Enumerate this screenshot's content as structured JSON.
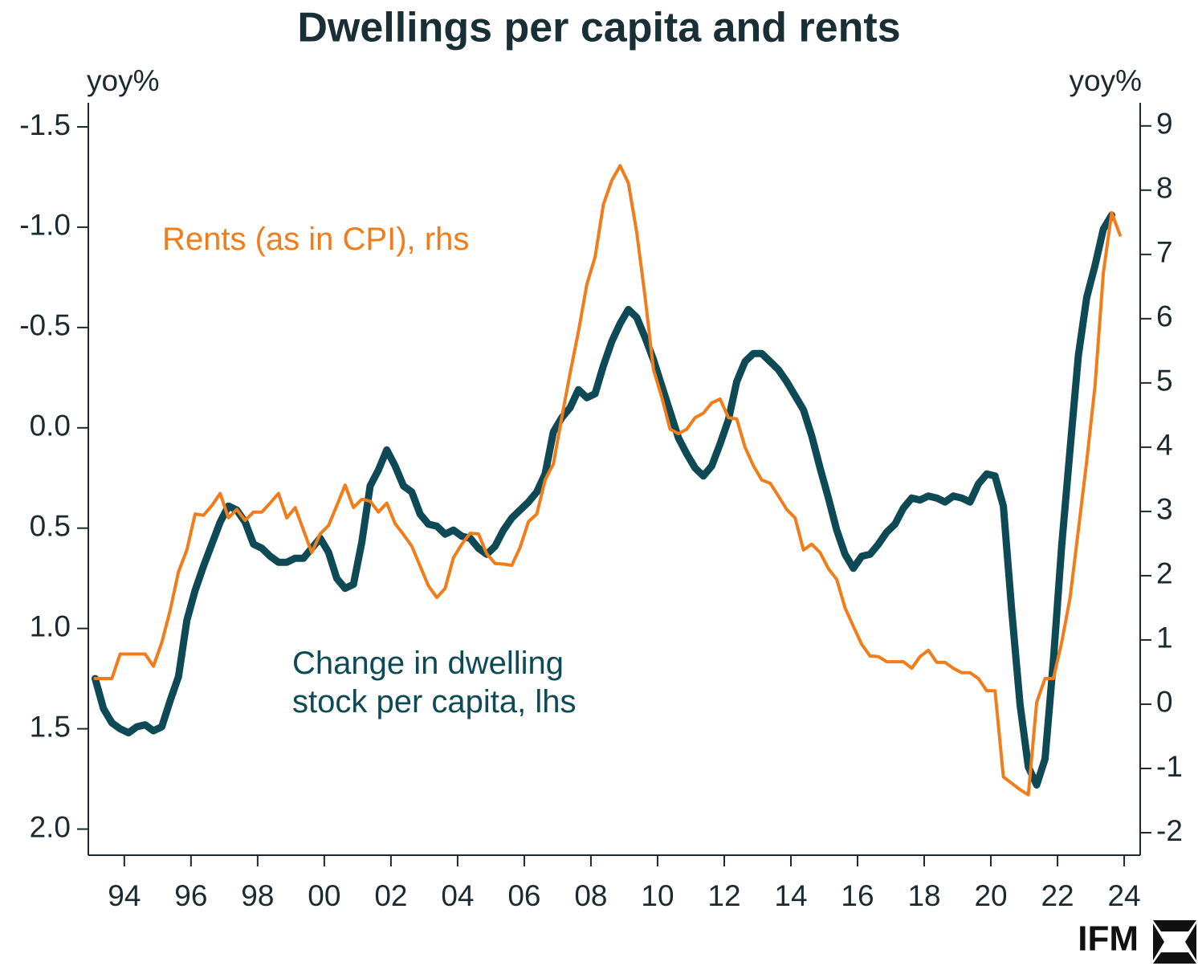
{
  "chart_data": {
    "type": "line",
    "title": "Dwellings per capita and rents",
    "y_unit": "yoy%",
    "y2_unit": "yoy%",
    "logo": "IFM",
    "x": [
      1993.125,
      1993.375,
      1993.625,
      1993.875,
      1994.125,
      1994.375,
      1994.625,
      1994.875,
      1995.125,
      1995.375,
      1995.625,
      1995.875,
      1996.125,
      1996.375,
      1996.625,
      1996.875,
      1997.125,
      1997.375,
      1997.625,
      1997.875,
      1998.125,
      1998.375,
      1998.625,
      1998.875,
      1999.125,
      1999.375,
      1999.625,
      1999.875,
      2000.125,
      2000.375,
      2000.625,
      2000.875,
      2001.125,
      2001.375,
      2001.625,
      2001.875,
      2002.125,
      2002.375,
      2002.625,
      2002.875,
      2003.125,
      2003.375,
      2003.625,
      2003.875,
      2004.125,
      2004.375,
      2004.625,
      2004.875,
      2005.125,
      2005.375,
      2005.625,
      2005.875,
      2006.125,
      2006.375,
      2006.625,
      2006.875,
      2007.125,
      2007.375,
      2007.625,
      2007.875,
      2008.125,
      2008.375,
      2008.625,
      2008.875,
      2009.125,
      2009.375,
      2009.625,
      2009.875,
      2010.125,
      2010.375,
      2010.625,
      2010.875,
      2011.125,
      2011.375,
      2011.625,
      2011.875,
      2012.125,
      2012.375,
      2012.625,
      2012.875,
      2013.125,
      2013.375,
      2013.625,
      2013.875,
      2014.125,
      2014.375,
      2014.625,
      2014.875,
      2015.125,
      2015.375,
      2015.625,
      2015.875,
      2016.125,
      2016.375,
      2016.625,
      2016.875,
      2017.125,
      2017.375,
      2017.625,
      2017.875,
      2018.125,
      2018.375,
      2018.625,
      2018.875,
      2019.125,
      2019.375,
      2019.625,
      2019.875,
      2020.125,
      2020.375,
      2020.625,
      2020.875,
      2021.125,
      2021.375,
      2021.625,
      2021.875,
      2022.125,
      2022.375,
      2022.625,
      2022.875,
      2023.125,
      2023.375,
      2023.625,
      2023.875
    ],
    "series": [
      {
        "name": "Change in dwelling stock per capita, lhs",
        "color": "#0d4a55",
        "axis": "y",
        "values": [
          1.25,
          1.4,
          1.47,
          1.5,
          1.52,
          1.49,
          1.48,
          1.51,
          1.49,
          1.36,
          1.24,
          0.96,
          0.81,
          0.69,
          0.58,
          0.47,
          0.39,
          0.41,
          0.47,
          0.58,
          0.6,
          0.64,
          0.67,
          0.67,
          0.65,
          0.65,
          0.6,
          0.55,
          0.62,
          0.75,
          0.8,
          0.78,
          0.57,
          0.29,
          0.21,
          0.11,
          0.19,
          0.29,
          0.32,
          0.43,
          0.48,
          0.49,
          0.53,
          0.51,
          0.54,
          0.55,
          0.6,
          0.63,
          0.59,
          0.51,
          0.45,
          0.41,
          0.37,
          0.32,
          0.23,
          0.02,
          -0.05,
          -0.1,
          -0.19,
          -0.15,
          -0.17,
          -0.31,
          -0.43,
          -0.52,
          -0.59,
          -0.55,
          -0.45,
          -0.34,
          -0.21,
          -0.08,
          0.05,
          0.13,
          0.2,
          0.24,
          0.19,
          0.08,
          -0.04,
          -0.23,
          -0.33,
          -0.37,
          -0.37,
          -0.33,
          -0.29,
          -0.23,
          -0.16,
          -0.09,
          0.04,
          0.2,
          0.35,
          0.51,
          0.63,
          0.7,
          0.64,
          0.63,
          0.58,
          0.52,
          0.48,
          0.4,
          0.35,
          0.36,
          0.34,
          0.35,
          0.37,
          0.34,
          0.35,
          0.37,
          0.28,
          0.23,
          0.24,
          0.39,
          0.91,
          1.38,
          1.69,
          1.78,
          1.65,
          1.16,
          0.59,
          0.11,
          -0.36,
          -0.65,
          -0.81,
          -0.99,
          -1.06,
          null
        ]
      },
      {
        "name": "Rents (as in CPI), rhs",
        "color": "#f07d19",
        "axis": "y2",
        "values": [
          0.4,
          0.4,
          0.4,
          0.78,
          0.78,
          0.78,
          0.78,
          0.59,
          0.96,
          1.46,
          2.06,
          2.4,
          2.96,
          2.94,
          3.09,
          3.28,
          2.9,
          3.03,
          2.86,
          2.99,
          2.99,
          3.13,
          3.28,
          2.9,
          3.06,
          2.71,
          2.36,
          2.65,
          2.78,
          3.09,
          3.41,
          3.06,
          3.19,
          3.16,
          2.99,
          3.13,
          2.81,
          2.64,
          2.46,
          2.15,
          1.84,
          1.66,
          1.8,
          2.28,
          2.49,
          2.66,
          2.65,
          2.34,
          2.19,
          2.18,
          2.16,
          2.44,
          2.84,
          2.96,
          3.49,
          3.74,
          4.46,
          5.15,
          5.8,
          6.53,
          6.96,
          7.78,
          8.15,
          8.38,
          8.11,
          7.34,
          6.34,
          5.21,
          4.78,
          4.28,
          4.21,
          4.28,
          4.46,
          4.53,
          4.69,
          4.75,
          4.46,
          4.44,
          4.0,
          3.71,
          3.49,
          3.44,
          3.24,
          3.03,
          2.9,
          2.4,
          2.49,
          2.36,
          2.11,
          1.94,
          1.5,
          1.21,
          0.93,
          0.75,
          0.74,
          0.66,
          0.66,
          0.66,
          0.56,
          0.74,
          0.84,
          0.65,
          0.65,
          0.56,
          0.49,
          0.49,
          0.4,
          0.21,
          0.21,
          -1.13,
          -1.23,
          -1.33,
          -1.41,
          0.03,
          0.4,
          0.4,
          0.96,
          1.65,
          2.71,
          3.78,
          4.96,
          6.71,
          7.65,
          7.3
        ]
      }
    ],
    "xlim": [
      1992.92,
      2024.48
    ],
    "xticks": [
      {
        "value": 1994,
        "label": "94"
      },
      {
        "value": 1996,
        "label": "96"
      },
      {
        "value": 1998,
        "label": "98"
      },
      {
        "value": 2000,
        "label": "00"
      },
      {
        "value": 2002,
        "label": "02"
      },
      {
        "value": 2004,
        "label": "04"
      },
      {
        "value": 2006,
        "label": "06"
      },
      {
        "value": 2008,
        "label": "08"
      },
      {
        "value": 2010,
        "label": "10"
      },
      {
        "value": 2012,
        "label": "12"
      },
      {
        "value": 2014,
        "label": "14"
      },
      {
        "value": 2016,
        "label": "16"
      },
      {
        "value": 2018,
        "label": "18"
      },
      {
        "value": 2020,
        "label": "20"
      },
      {
        "value": 2022,
        "label": "22"
      },
      {
        "value": 2024,
        "label": "24"
      }
    ],
    "ylim": [
      -1.62,
      2.13
    ],
    "y_inverted": true,
    "yticks": [
      -1.5,
      {
        "value": -1.0,
        "label": "-1.0"
      },
      -0.5,
      {
        "value": 0.0,
        "label": "0.0"
      },
      0.5,
      {
        "value": 1.0,
        "label": "1.0"
      },
      1.5,
      {
        "value": 2.0,
        "label": "2.0"
      }
    ],
    "y2lim": [
      -2.35,
      9.36
    ],
    "y2ticks": [
      -2,
      -1,
      0,
      1,
      2,
      3,
      4,
      5,
      6,
      7,
      8,
      9
    ],
    "grid": false
  }
}
